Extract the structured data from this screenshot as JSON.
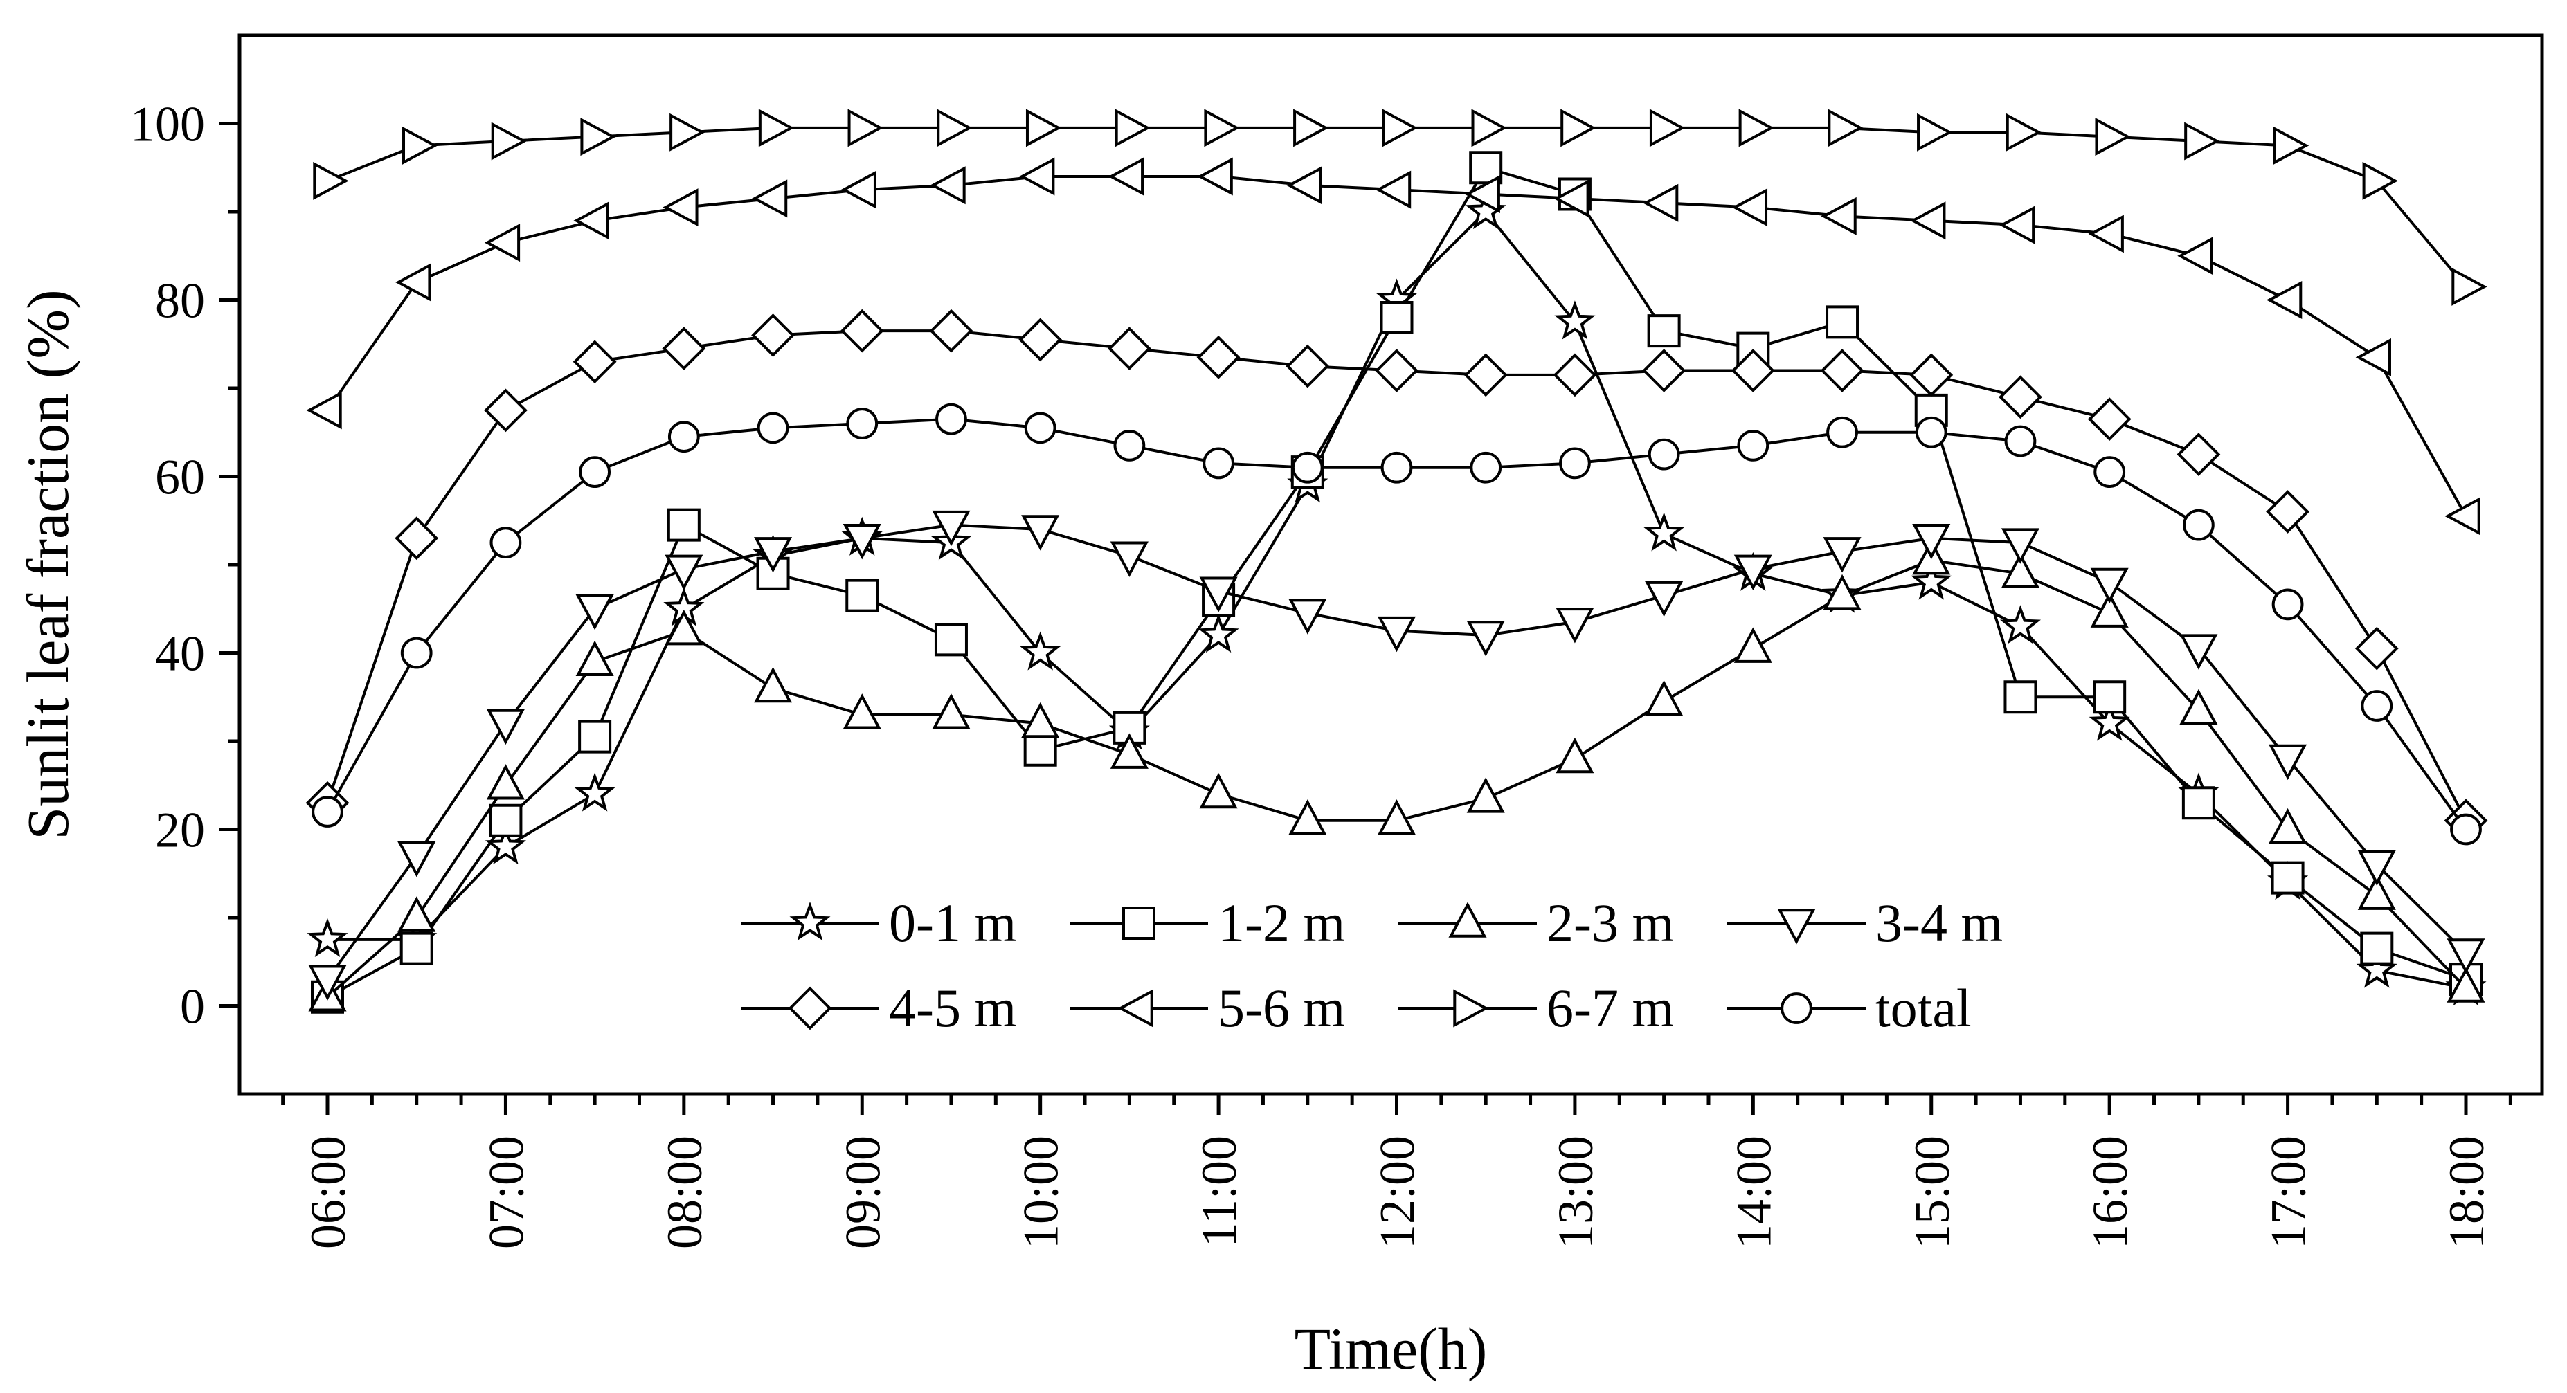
{
  "chart_data": {
    "type": "line",
    "title": "",
    "xlabel": "Time(h)",
    "ylabel": "Sunlit leaf fraction (%)",
    "ylim": [
      -10,
      110
    ],
    "yticks": [
      0,
      20,
      40,
      60,
      80,
      100
    ],
    "ytick_labels": [
      "0",
      "20",
      "40",
      "60",
      "80",
      "100"
    ],
    "xlim": [
      6,
      18.25
    ],
    "xticks": [
      6,
      7,
      8,
      9,
      10,
      11,
      12,
      13,
      14,
      15,
      16,
      17,
      18
    ],
    "xtick_labels": [
      "06:00",
      "07:00",
      "08:00",
      "09:00",
      "10:00",
      "11:00",
      "12:00",
      "13:00",
      "14:00",
      "15:00",
      "16:00",
      "17:00",
      "18:00"
    ],
    "x": [
      6,
      6.5,
      7,
      7.5,
      8,
      8.5,
      9,
      9.5,
      10,
      10.5,
      11,
      11.5,
      12,
      12.5,
      13,
      13.5,
      14,
      14.5,
      15,
      15.5,
      16,
      16.5,
      17,
      17.5,
      18
    ],
    "legend_position": "bottom-center",
    "series": [
      {
        "name": "0-1 m",
        "marker": "star",
        "values": [
          7.5,
          7.5,
          18,
          24,
          45,
          51,
          53,
          52.5,
          40,
          31,
          42,
          59,
          80,
          90,
          77.5,
          53.5,
          49,
          46.5,
          48,
          43,
          32,
          24,
          14,
          4,
          2
        ]
      },
      {
        "name": "1-2 m",
        "marker": "square",
        "values": [
          1,
          6.5,
          21,
          30.5,
          54.5,
          49,
          46.5,
          41.5,
          29,
          31.5,
          46,
          60.5,
          78,
          95,
          92,
          76.5,
          74.5,
          77.5,
          67.5,
          35,
          35,
          23,
          14.5,
          6.5,
          3
        ]
      },
      {
        "name": "2-3 m",
        "marker": "triangle-up",
        "values": [
          1,
          10,
          25,
          39,
          42.5,
          36,
          33,
          33,
          32,
          28.5,
          24,
          21,
          21,
          23.5,
          28,
          34.5,
          40.5,
          46.5,
          50.5,
          49,
          44.5,
          33.5,
          20,
          12.5,
          2
        ]
      },
      {
        "name": "3-4 m",
        "marker": "triangle-down",
        "values": [
          3,
          17,
          32,
          45,
          49.5,
          51.5,
          53,
          54.5,
          54,
          51,
          47,
          44.5,
          42.5,
          42,
          43.5,
          46.5,
          49.5,
          51.5,
          53,
          52.5,
          48,
          40.5,
          28,
          16,
          6
        ]
      },
      {
        "name": "4-5 m",
        "marker": "diamond",
        "values": [
          23,
          53,
          67.5,
          73,
          74.5,
          76,
          76.5,
          76.5,
          75.5,
          74.5,
          73.5,
          72.5,
          72,
          71.5,
          71.5,
          72,
          72,
          72,
          71.5,
          69,
          66.5,
          62.5,
          56,
          40.5,
          21
        ]
      },
      {
        "name": "5-6 m",
        "marker": "triangle-left",
        "values": [
          67.5,
          82,
          86.5,
          89,
          90.5,
          91.5,
          92.5,
          93,
          94,
          94,
          94,
          93,
          92.5,
          92,
          91.5,
          91,
          90.5,
          89.5,
          89,
          88.5,
          87.5,
          85,
          80,
          73.5,
          55.5
        ]
      },
      {
        "name": "6-7 m",
        "marker": "triangle-right",
        "values": [
          93.5,
          97.5,
          98,
          98.5,
          99,
          99.5,
          99.5,
          99.5,
          99.5,
          99.5,
          99.5,
          99.5,
          99.5,
          99.5,
          99.5,
          99.5,
          99.5,
          99.5,
          99,
          99,
          98.5,
          98,
          97.5,
          93.5,
          81.5
        ]
      },
      {
        "name": "total",
        "marker": "circle",
        "values": [
          22,
          40,
          52.5,
          60.5,
          64.5,
          65.5,
          66,
          66.5,
          65.5,
          63.5,
          61.5,
          61,
          61,
          61,
          61.5,
          62.5,
          63.5,
          65,
          65,
          64,
          60.5,
          54.5,
          45.5,
          34,
          20
        ]
      }
    ]
  }
}
